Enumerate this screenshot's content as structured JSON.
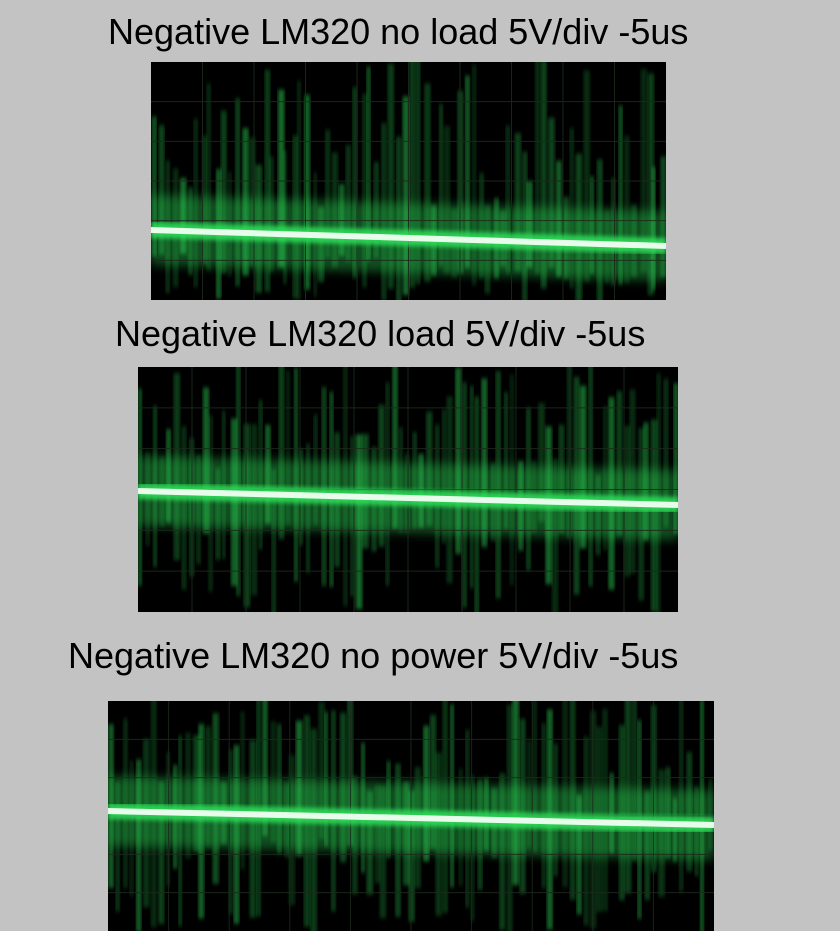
{
  "panels": [
    {
      "caption": "Negative LM320 no load 5V/div -5us"
    },
    {
      "caption": "Negative LM320 load 5V/div -5us"
    },
    {
      "caption": "Negative LM320 no power 5V/div -5us"
    }
  ],
  "colors": {
    "background": "#c3c3c3",
    "screen": "#000000",
    "trace_glow": "#2ee05a",
    "trace_core": "#f2fff4",
    "graticule": "#1c2a1c"
  }
}
